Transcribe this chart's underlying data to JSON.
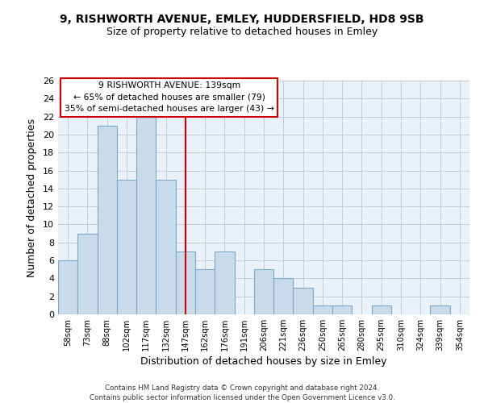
{
  "title1": "9, RISHWORTH AVENUE, EMLEY, HUDDERSFIELD, HD8 9SB",
  "title2": "Size of property relative to detached houses in Emley",
  "xlabel": "Distribution of detached houses by size in Emley",
  "ylabel": "Number of detached properties",
  "bar_labels": [
    "58sqm",
    "73sqm",
    "88sqm",
    "102sqm",
    "117sqm",
    "132sqm",
    "147sqm",
    "162sqm",
    "176sqm",
    "191sqm",
    "206sqm",
    "221sqm",
    "236sqm",
    "250sqm",
    "265sqm",
    "280sqm",
    "295sqm",
    "310sqm",
    "324sqm",
    "339sqm",
    "354sqm"
  ],
  "bar_values": [
    6,
    9,
    21,
    15,
    22,
    15,
    7,
    5,
    7,
    0,
    5,
    4,
    3,
    1,
    1,
    0,
    1,
    0,
    0,
    1,
    0
  ],
  "bar_color": "#c9daea",
  "bar_edge_color": "#7baac8",
  "vline_x": 6,
  "vline_color": "#cc0000",
  "ylim": [
    0,
    26
  ],
  "yticks": [
    0,
    2,
    4,
    6,
    8,
    10,
    12,
    14,
    16,
    18,
    20,
    22,
    24,
    26
  ],
  "annotation_title": "9 RISHWORTH AVENUE: 139sqm",
  "annotation_line1": "← 65% of detached houses are smaller (79)",
  "annotation_line2": "35% of semi-detached houses are larger (43) →",
  "annotation_box_color": "#ffffff",
  "annotation_border_color": "#cc0000",
  "bg_color": "#eaf1f8",
  "grid_color": "#c0cdd8",
  "footer1": "Contains HM Land Registry data © Crown copyright and database right 2024.",
  "footer2": "Contains public sector information licensed under the Open Government Licence v3.0."
}
